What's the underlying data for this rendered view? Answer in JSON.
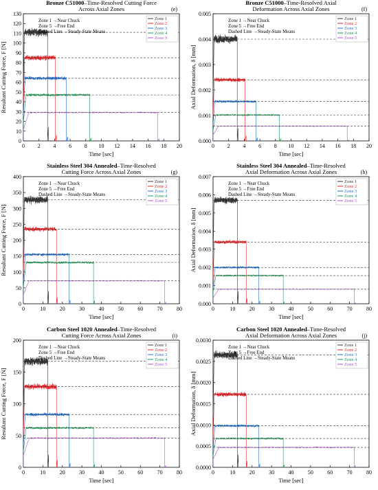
{
  "figure": {
    "chart_data": [
      {
        "id": "e",
        "panel_label": "(e)",
        "type": "line",
        "title_bold": "Bronze C51000",
        "title_rest": "–Time-Resolved Cutting Force",
        "title_line2": "Across Axial Zones",
        "xlabel": "Time [sec]",
        "ylabel": "Resultant Cutting Force, F [N]",
        "xlim": [
          0,
          20
        ],
        "xticks": [
          0,
          2,
          4,
          6,
          8,
          10,
          12,
          14,
          16,
          18,
          20
        ],
        "ylim": [
          0,
          130
        ],
        "yticks": [
          0,
          10,
          20,
          30,
          40,
          50,
          60,
          70,
          80,
          90,
          100,
          110,
          120,
          130
        ],
        "ytick_decimals": 0,
        "annotations": [
          "Zone 1 →Near Chuck",
          "Zone 5 →Free End",
          "Dashed Line →Steady-State Means"
        ],
        "series": [
          {
            "name": "Zone 1",
            "color": "#333333",
            "start": 0,
            "end": 3.1,
            "mean": 111,
            "noise": 5,
            "tail_end": 3.3,
            "tail_drop": 14
          },
          {
            "name": "Zone 2",
            "color": "#e8262a",
            "start": 0,
            "end": 4.1,
            "mean": 85,
            "noise": 3.5,
            "tail_end": 4.4,
            "tail_drop": 6
          },
          {
            "name": "Zone 3",
            "color": "#1f6fd0",
            "start": 0,
            "end": 5.5,
            "mean": 64,
            "noise": 2.5,
            "tail_end": 5.9,
            "tail_drop": 4
          },
          {
            "name": "Zone 4",
            "color": "#1a9850",
            "start": 0,
            "end": 8.5,
            "mean": 47,
            "noise": 1.8,
            "tail_end": 8.9,
            "tail_drop": 3
          },
          {
            "name": "Zone 5",
            "color": "#b04fd6",
            "start": 0,
            "end": 17.2,
            "mean": 29,
            "noise": 0.8,
            "tail_end": 17.6,
            "tail_drop": 2
          }
        ]
      },
      {
        "id": "f",
        "panel_label": "(f)",
        "type": "line",
        "title_bold": "Bronze C51000",
        "title_rest": "–Time-Resolved Axial",
        "title_line2": "Deformation Across Axial Zones",
        "xlabel": "Time [sec]",
        "ylabel": "Axial Deformation, δ [mm]",
        "xlim": [
          0,
          20
        ],
        "xticks": [
          0,
          2,
          4,
          6,
          8,
          10,
          12,
          14,
          16,
          18,
          20
        ],
        "ylim": [
          0,
          0.005
        ],
        "yticks": [
          0,
          0.001,
          0.002,
          0.003,
          0.004,
          0.005
        ],
        "ytick_decimals": 3,
        "annotations": [
          "Zone 1 →Near Chuck",
          "Zone 5 →Free End",
          "Dashed Line →Steady-State Means"
        ],
        "series": [
          {
            "name": "Zone 1",
            "color": "#333333",
            "start": 0,
            "end": 3.1,
            "mean": 0.004,
            "noise": 0.00022,
            "tail_end": 3.3,
            "tail_drop": 0.0005
          },
          {
            "name": "Zone 2",
            "color": "#e8262a",
            "start": 0,
            "end": 4.1,
            "mean": 0.0024,
            "noise": 0.0001,
            "tail_end": 4.4,
            "tail_drop": 0.0002
          },
          {
            "name": "Zone 3",
            "color": "#1f6fd0",
            "start": 0,
            "end": 5.5,
            "mean": 0.00155,
            "noise": 7e-05,
            "tail_end": 5.9,
            "tail_drop": 0.00012
          },
          {
            "name": "Zone 4",
            "color": "#1a9850",
            "start": 0,
            "end": 8.5,
            "mean": 0.00102,
            "noise": 4e-05,
            "tail_end": 8.9,
            "tail_drop": 8e-05
          },
          {
            "name": "Zone 5",
            "color": "#b04fd6",
            "start": 0,
            "end": 17.2,
            "mean": 0.00058,
            "noise": 2e-05,
            "tail_end": 17.6,
            "tail_drop": 4e-05
          }
        ]
      },
      {
        "id": "g",
        "panel_label": "(g)",
        "type": "line",
        "title_bold": "Stainless Steel 304 Annealed",
        "title_rest": "–Time-Resolved",
        "title_line2": "Cutting Force Across Axial Zones",
        "xlabel": "Time [sec]",
        "ylabel": "Resultant Cutting Force, F [N]",
        "xlim": [
          0,
          80
        ],
        "xticks": [
          0,
          10,
          20,
          30,
          40,
          50,
          60,
          70,
          80
        ],
        "ylim": [
          0,
          400
        ],
        "yticks": [
          0,
          50,
          100,
          150,
          200,
          250,
          300,
          350,
          400
        ],
        "ytick_decimals": 0,
        "annotations": [
          "Zone 1 →Near Chuck",
          "Zone 5 →Free End",
          "Dashed Line →Steady-State Means"
        ],
        "series": [
          {
            "name": "Zone 1",
            "color": "#333333",
            "start": 0,
            "end": 12.5,
            "mean": 327,
            "noise": 16,
            "tail_end": 13.3,
            "tail_drop": 40
          },
          {
            "name": "Zone 2",
            "color": "#e8262a",
            "start": 0,
            "end": 17,
            "mean": 235,
            "noise": 10,
            "tail_end": 17.8,
            "tail_drop": 20
          },
          {
            "name": "Zone 3",
            "color": "#1f6fd0",
            "start": 0,
            "end": 23.5,
            "mean": 155,
            "noise": 6,
            "tail_end": 24.5,
            "tail_drop": 12
          },
          {
            "name": "Zone 4",
            "color": "#1a9850",
            "start": 0,
            "end": 36,
            "mean": 130,
            "noise": 5,
            "tail_end": 37,
            "tail_drop": 10
          },
          {
            "name": "Zone 5",
            "color": "#b04fd6",
            "start": 0,
            "end": 72.5,
            "mean": 72,
            "noise": 2,
            "tail_end": 73.5,
            "tail_drop": 5
          }
        ]
      },
      {
        "id": "h",
        "panel_label": "(h)",
        "type": "line",
        "title_bold": "Stainless Steel 304 Annealed",
        "title_rest": "–Time-Resolved",
        "title_line2": "Axial Deformation Across Axial Zones",
        "xlabel": "Time [sec]",
        "ylabel": "Axial Deformation, δ [mm]",
        "xlim": [
          0,
          80
        ],
        "xticks": [
          0,
          10,
          20,
          30,
          40,
          50,
          60,
          70,
          80
        ],
        "ylim": [
          0,
          0.007
        ],
        "yticks": [
          0,
          0.001,
          0.002,
          0.003,
          0.004,
          0.005,
          0.006,
          0.007
        ],
        "ytick_decimals": 3,
        "annotations": [
          "Zone 1 →Near Chuck",
          "Zone 5 →Free End",
          "Dashed Line →Steady-State Means"
        ],
        "series": [
          {
            "name": "Zone 1",
            "color": "#333333",
            "start": 0,
            "end": 12.5,
            "mean": 0.0057,
            "noise": 0.00025,
            "tail_end": 13.3,
            "tail_drop": 0.0007
          },
          {
            "name": "Zone 2",
            "color": "#e8262a",
            "start": 0,
            "end": 17,
            "mean": 0.0034,
            "noise": 0.00013,
            "tail_end": 17.8,
            "tail_drop": 0.0003
          },
          {
            "name": "Zone 3",
            "color": "#1f6fd0",
            "start": 0,
            "end": 23.5,
            "mean": 0.002,
            "noise": 8e-05,
            "tail_end": 24.5,
            "tail_drop": 0.00015
          },
          {
            "name": "Zone 4",
            "color": "#1a9850",
            "start": 0,
            "end": 36,
            "mean": 0.00155,
            "noise": 6e-05,
            "tail_end": 37,
            "tail_drop": 0.00012
          },
          {
            "name": "Zone 5",
            "color": "#b04fd6",
            "start": 0,
            "end": 72.5,
            "mean": 0.0008,
            "noise": 3e-05,
            "tail_end": 73.5,
            "tail_drop": 6e-05
          }
        ]
      },
      {
        "id": "i",
        "panel_label": "(i)",
        "type": "line",
        "title_bold": "Carbon Steel 1020 Annealed",
        "title_rest": "–Time-Resolved",
        "title_line2": "Cutting Force Across Axial Zones",
        "xlabel": "Time [sec]",
        "ylabel": "Resultant Cutting Force, F [N]",
        "xlim": [
          0,
          80
        ],
        "xticks": [
          0,
          10,
          20,
          30,
          40,
          50,
          60,
          70,
          80
        ],
        "ylim": [
          0,
          200
        ],
        "yticks": [
          0,
          50,
          100,
          150,
          200
        ],
        "ytick_decimals": 0,
        "annotations": [
          "Zone 1 →Near Chuck",
          "Zone 5 →Free End",
          "Dashed Line →Steady-State Means"
        ],
        "series": [
          {
            "name": "Zone 1",
            "color": "#333333",
            "start": 0,
            "end": 12.5,
            "mean": 167,
            "noise": 9,
            "tail_end": 13.3,
            "tail_drop": 20
          },
          {
            "name": "Zone 2",
            "color": "#e8262a",
            "start": 0,
            "end": 17,
            "mean": 127,
            "noise": 6,
            "tail_end": 17.8,
            "tail_drop": 12
          },
          {
            "name": "Zone 3",
            "color": "#1f6fd0",
            "start": 0,
            "end": 23.5,
            "mean": 83,
            "noise": 3.5,
            "tail_end": 24.5,
            "tail_drop": 7
          },
          {
            "name": "Zone 4",
            "color": "#1a9850",
            "start": 0,
            "end": 36,
            "mean": 62,
            "noise": 2.5,
            "tail_end": 37,
            "tail_drop": 5
          },
          {
            "name": "Zone 5",
            "color": "#b04fd6",
            "start": 0,
            "end": 72.5,
            "mean": 46,
            "noise": 1.5,
            "tail_end": 73.5,
            "tail_drop": 3
          }
        ]
      },
      {
        "id": "j",
        "panel_label": "(j)",
        "type": "line",
        "title_bold": "Carbon Steel 1020 Annealed",
        "title_rest": "–Time-Resolved",
        "title_line2": "Axial Deformation Across Axial Zones",
        "xlabel": "Time [sec]",
        "ylabel": "Axial Deformation, δ [mm]",
        "xlim": [
          0,
          80
        ],
        "xticks": [
          0,
          10,
          20,
          30,
          40,
          50,
          60,
          70,
          80
        ],
        "ylim": [
          0,
          0.003
        ],
        "yticks": [
          0,
          0.0005,
          0.001,
          0.0015,
          0.002,
          0.0025,
          0.003
        ],
        "ytick_decimals": 4,
        "annotations": [
          "Zone 1 →Near Chuck",
          "Zone 5 →Free End",
          "Dashed Line →Steady-State Means"
        ],
        "series": [
          {
            "name": "Zone 1",
            "color": "#333333",
            "start": 0,
            "end": 12.5,
            "mean": 0.00265,
            "noise": 0.00012,
            "tail_end": 13.3,
            "tail_drop": 0.0003
          },
          {
            "name": "Zone 2",
            "color": "#e8262a",
            "start": 0,
            "end": 17,
            "mean": 0.00172,
            "noise": 7e-05,
            "tail_end": 17.8,
            "tail_drop": 0.00015
          },
          {
            "name": "Zone 3",
            "color": "#1f6fd0",
            "start": 0,
            "end": 23.5,
            "mean": 0.00098,
            "noise": 4e-05,
            "tail_end": 24.5,
            "tail_drop": 8e-05
          },
          {
            "name": "Zone 4",
            "color": "#1a9850",
            "start": 0,
            "end": 36,
            "mean": 0.00068,
            "noise": 3e-05,
            "tail_end": 37,
            "tail_drop": 6e-05
          },
          {
            "name": "Zone 5",
            "color": "#b04fd6",
            "start": 0,
            "end": 72.5,
            "mean": 0.00047,
            "noise": 2e-05,
            "tail_end": 73.5,
            "tail_drop": 4e-05
          }
        ]
      }
    ]
  }
}
